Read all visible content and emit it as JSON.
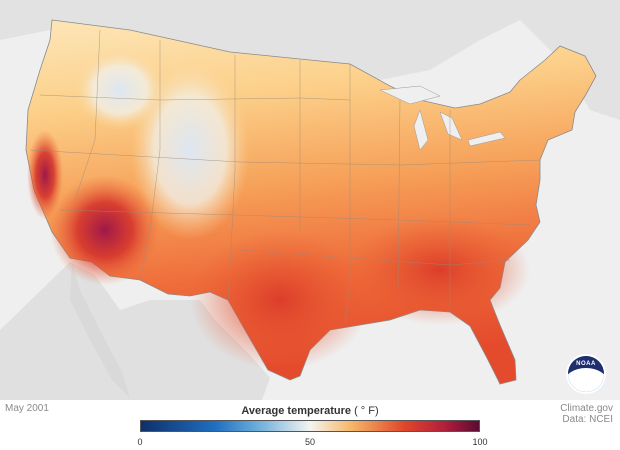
{
  "map": {
    "date": "May 2001",
    "credit_line1": "Climate.gov",
    "credit_line2": "Data: NCEI",
    "logo_icon": "noaa-logo-icon",
    "colors": {
      "land_background": "#e3e3e3",
      "ocean": "#efefef",
      "cold": "#0f2f6b",
      "mild": "#f4f4f0",
      "warm": "#f6b86a",
      "hot": "#e0462a",
      "hottest": "#5a0b32"
    }
  },
  "legend": {
    "title": "Average temperature",
    "unit": "( ° F)",
    "ticks": [
      "0",
      "50",
      "100"
    ],
    "min": 0,
    "max": 100
  }
}
